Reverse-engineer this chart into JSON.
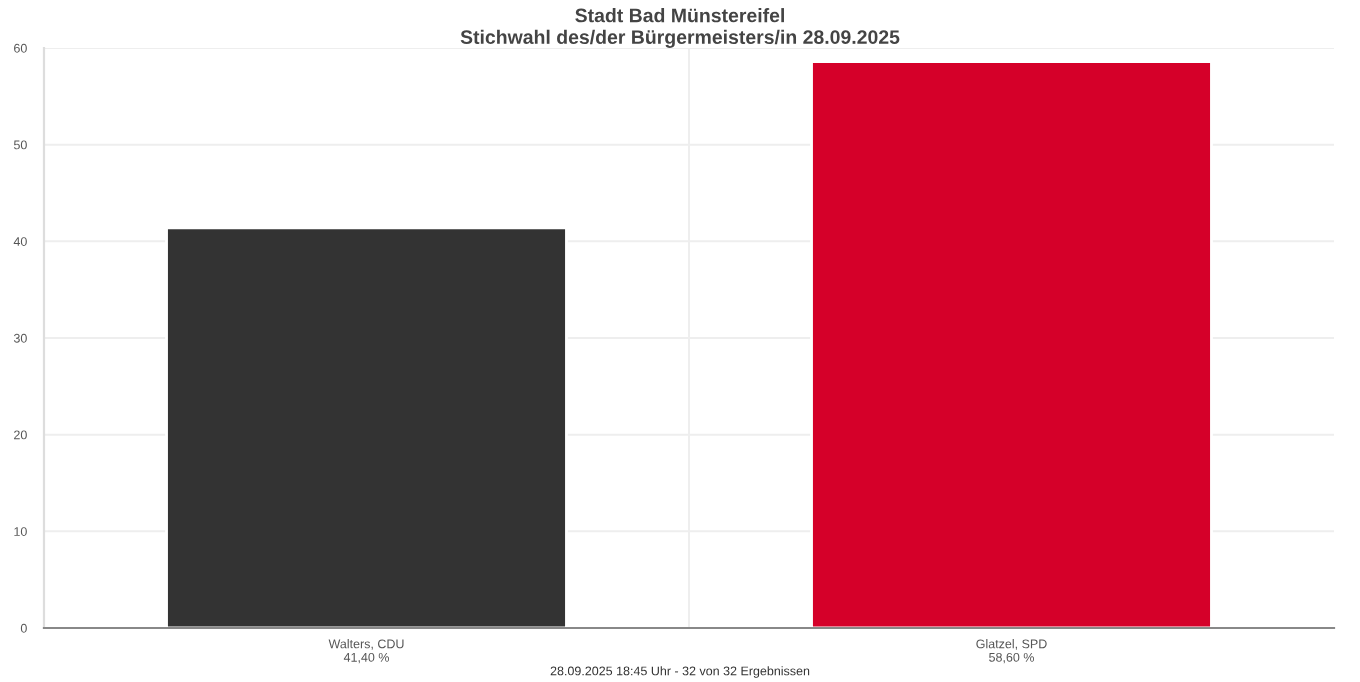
{
  "chart_data": {
    "type": "bar",
    "title": "Stadt Bad Münstereifel\nStichwahl des/der Bürgermeisters/in 28.09.2025",
    "categories": [
      "Walters, CDU",
      "Glatzel, SPD"
    ],
    "values": [
      41.4,
      58.6
    ],
    "colors": [
      "#333333",
      "#d50029"
    ],
    "value_labels": [
      "41,40 %",
      "58,60 %"
    ],
    "ylim": [
      0,
      60
    ],
    "yticks": [
      0,
      10,
      20,
      30,
      40,
      50,
      60
    ],
    "grid": true,
    "annotations": [
      "28.09.2025 18:45 Uhr - 32 von 32 Ergebnissen"
    ]
  }
}
